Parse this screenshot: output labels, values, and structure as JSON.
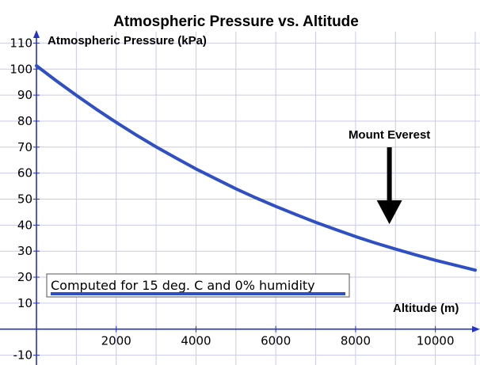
{
  "chart_data": {
    "type": "line",
    "title": "Atmospheric Pressure vs. Altitude",
    "xlabel": "Altitude (m)",
    "ylabel": "Atmospheric Pressure (kPa)",
    "xlim": [
      0,
      11000
    ],
    "ylim": [
      -15,
      115
    ],
    "x_ticks": [
      2000,
      4000,
      6000,
      8000,
      10000
    ],
    "y_ticks": [
      -10,
      10,
      20,
      30,
      40,
      50,
      60,
      70,
      80,
      90,
      100,
      110
    ],
    "grid": true,
    "series": [
      {
        "color": "#2f4fc4",
        "x": [
          0,
          500,
          1000,
          1500,
          2000,
          2500,
          3000,
          3500,
          4000,
          4500,
          5000,
          5500,
          6000,
          6500,
          7000,
          7500,
          8000,
          8500,
          9000,
          9500,
          10000,
          10500,
          11000
        ],
        "y": [
          101.3,
          95.5,
          89.9,
          84.6,
          79.5,
          74.7,
          70.1,
          65.8,
          61.6,
          57.8,
          54.0,
          50.5,
          47.2,
          44.1,
          41.1,
          38.3,
          35.6,
          33.1,
          30.8,
          28.6,
          26.5,
          24.6,
          22.7
        ]
      }
    ],
    "annotations": [
      {
        "text": "Mount Everest",
        "x": 8848
      }
    ],
    "legend": {
      "text": "Computed for 15 deg. C and 0% humidity",
      "placement": "bottom-left"
    }
  }
}
